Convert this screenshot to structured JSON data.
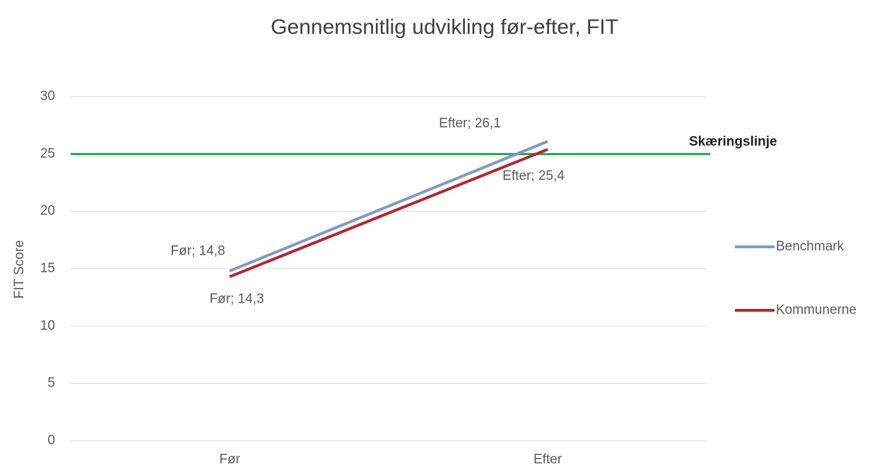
{
  "chart_data": {
    "type": "line",
    "title": "Gennemsnitlig udvikling før-efter, FIT",
    "y_label": "FIT Score",
    "categories": [
      "Før",
      "Efter"
    ],
    "series": [
      {
        "name": "Benchmark",
        "color": "#7b9cc2",
        "values": [
          14.8,
          26.1
        ],
        "value_labels": [
          "Før; 14,8",
          "Efter; 26,1"
        ]
      },
      {
        "name": "Kommunerne",
        "color": "#b5262c",
        "values": [
          14.3,
          25.4
        ],
        "value_labels": [
          "Før; 14,3",
          "Efter; 25,4"
        ]
      }
    ],
    "reference_line": {
      "label": "Skæringslinje",
      "value": 25,
      "color": "#1eaa48"
    },
    "ylim": [
      0,
      30
    ],
    "yticks": [
      0,
      5,
      10,
      15,
      20,
      25,
      30
    ],
    "grid": true,
    "legend": "right"
  }
}
